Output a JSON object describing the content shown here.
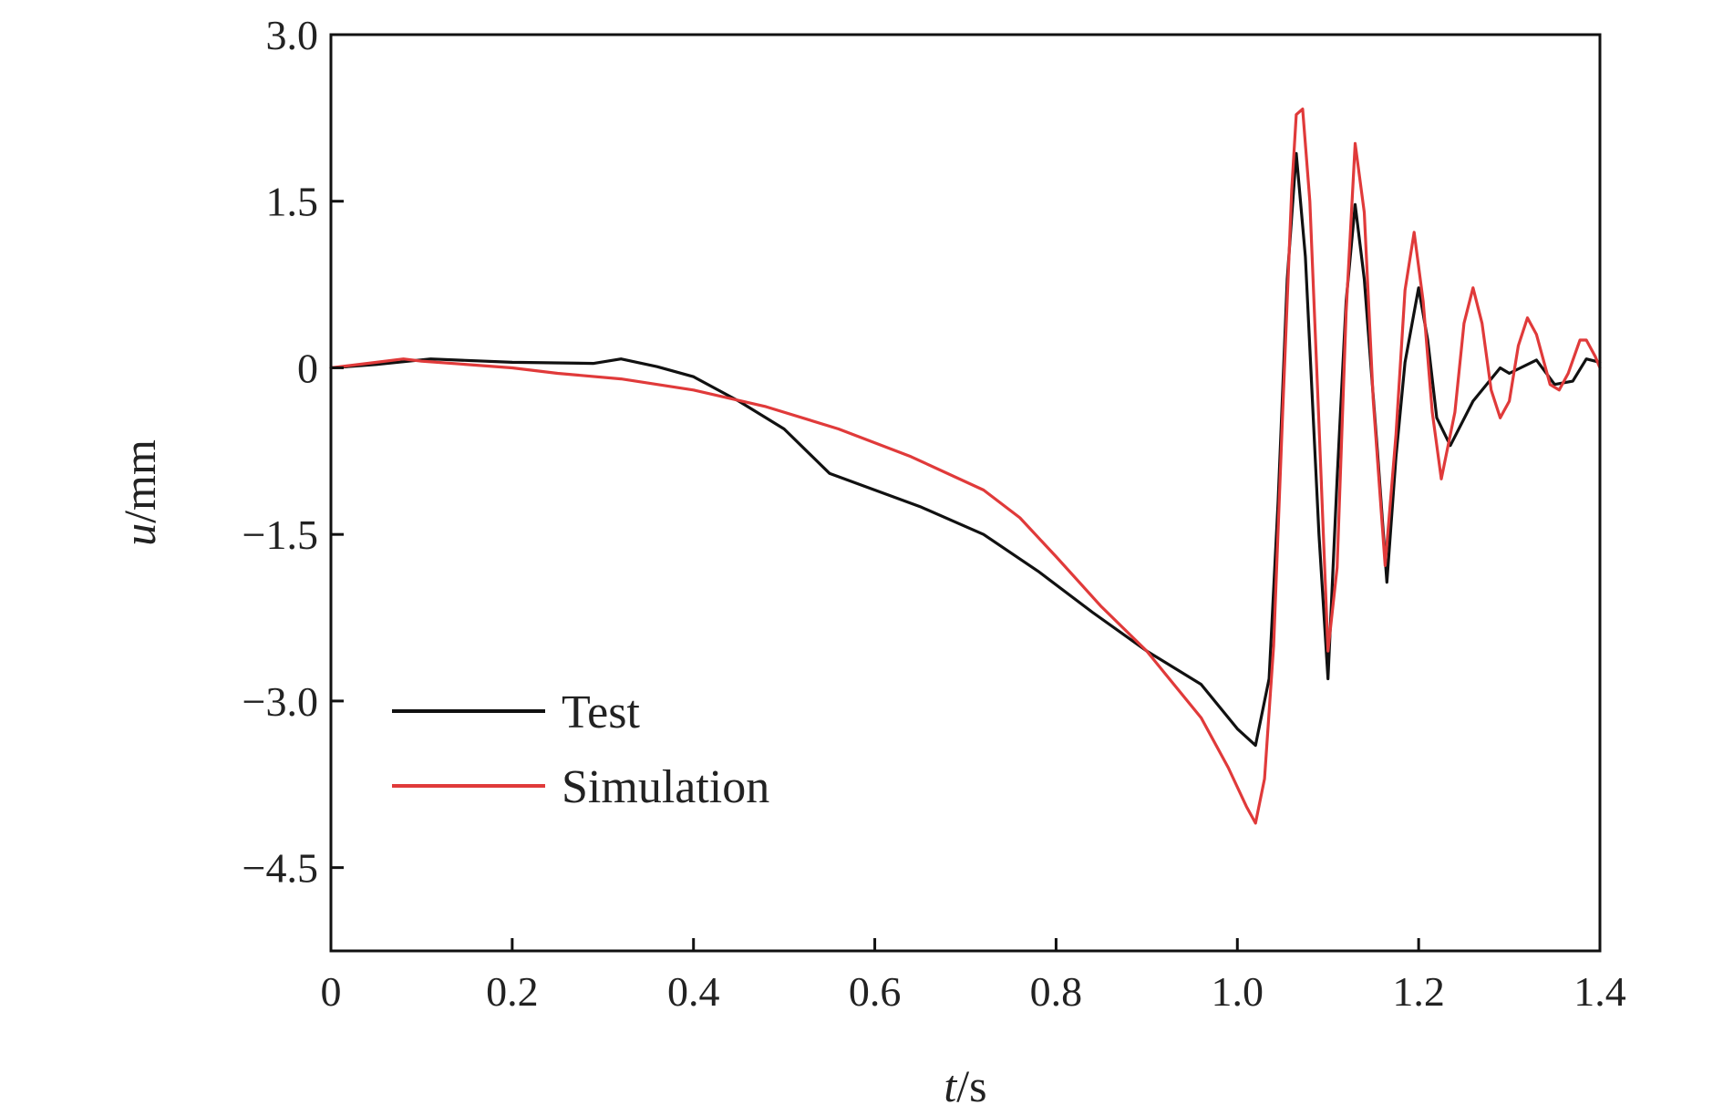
{
  "chart_data": {
    "type": "line",
    "title": "",
    "xlabel": {
      "var": "t",
      "unit": "/s"
    },
    "ylabel": {
      "var": "u",
      "unit": "/mm"
    },
    "xlim": [
      0,
      1.4
    ],
    "ylim": [
      -5.25,
      3.0
    ],
    "x_ticks": [
      0,
      0.2,
      0.4,
      0.6,
      0.8,
      1.0,
      1.2,
      1.4
    ],
    "x_tick_labels": [
      "0",
      "0.2",
      "0.4",
      "0.6",
      "0.8",
      "1.0",
      "1.2",
      "1.4"
    ],
    "y_ticks": [
      3.0,
      1.5,
      0,
      -1.5,
      -3.0,
      -4.5
    ],
    "y_tick_labels": [
      "3.0",
      "1.5",
      "0",
      "−1.5",
      "−3.0",
      "−4.5"
    ],
    "grid": false,
    "legend_position": "bottom-left",
    "series": [
      {
        "name": "Test",
        "color": "#111111",
        "points": [
          [
            0,
            0
          ],
          [
            0.05,
            0.03
          ],
          [
            0.11,
            0.08
          ],
          [
            0.2,
            0.05
          ],
          [
            0.29,
            0.04
          ],
          [
            0.32,
            0.08
          ],
          [
            0.36,
            0.01
          ],
          [
            0.4,
            -0.08
          ],
          [
            0.45,
            -0.3
          ],
          [
            0.5,
            -0.55
          ],
          [
            0.55,
            -0.95
          ],
          [
            0.6,
            -1.1
          ],
          [
            0.65,
            -1.25
          ],
          [
            0.72,
            -1.5
          ],
          [
            0.78,
            -1.83
          ],
          [
            0.84,
            -2.2
          ],
          [
            0.9,
            -2.55
          ],
          [
            0.96,
            -2.85
          ],
          [
            0.98,
            -3.05
          ],
          [
            1.0,
            -3.25
          ],
          [
            1.02,
            -3.4
          ],
          [
            1.035,
            -2.8
          ],
          [
            1.045,
            -1.2
          ],
          [
            1.055,
            0.8
          ],
          [
            1.065,
            1.93
          ],
          [
            1.075,
            1.0
          ],
          [
            1.09,
            -1.5
          ],
          [
            1.1,
            -2.8
          ],
          [
            1.11,
            -1.0
          ],
          [
            1.12,
            0.6
          ],
          [
            1.13,
            1.47
          ],
          [
            1.14,
            0.8
          ],
          [
            1.155,
            -0.8
          ],
          [
            1.165,
            -1.93
          ],
          [
            1.175,
            -0.8
          ],
          [
            1.185,
            0.05
          ],
          [
            1.2,
            0.72
          ],
          [
            1.21,
            0.25
          ],
          [
            1.22,
            -0.45
          ],
          [
            1.235,
            -0.7
          ],
          [
            1.26,
            -0.3
          ],
          [
            1.29,
            0.0
          ],
          [
            1.3,
            -0.05
          ],
          [
            1.33,
            0.07
          ],
          [
            1.35,
            -0.15
          ],
          [
            1.37,
            -0.12
          ],
          [
            1.385,
            0.08
          ],
          [
            1.4,
            0.05
          ]
        ]
      },
      {
        "name": "Simulation",
        "color": "#e03a3a",
        "points": [
          [
            0,
            0
          ],
          [
            0.04,
            0.04
          ],
          [
            0.08,
            0.08
          ],
          [
            0.1,
            0.06
          ],
          [
            0.2,
            0.0
          ],
          [
            0.25,
            -0.05
          ],
          [
            0.32,
            -0.1
          ],
          [
            0.4,
            -0.2
          ],
          [
            0.48,
            -0.35
          ],
          [
            0.56,
            -0.55
          ],
          [
            0.64,
            -0.8
          ],
          [
            0.72,
            -1.1
          ],
          [
            0.76,
            -1.35
          ],
          [
            0.8,
            -1.7
          ],
          [
            0.85,
            -2.15
          ],
          [
            0.9,
            -2.55
          ],
          [
            0.92,
            -2.75
          ],
          [
            0.96,
            -3.15
          ],
          [
            0.99,
            -3.6
          ],
          [
            1.01,
            -3.95
          ],
          [
            1.02,
            -4.1
          ],
          [
            1.03,
            -3.7
          ],
          [
            1.04,
            -2.5
          ],
          [
            1.05,
            -0.4
          ],
          [
            1.06,
            1.6
          ],
          [
            1.065,
            2.28
          ],
          [
            1.072,
            2.33
          ],
          [
            1.08,
            1.5
          ],
          [
            1.09,
            -0.5
          ],
          [
            1.1,
            -2.55
          ],
          [
            1.11,
            -1.8
          ],
          [
            1.12,
            0.5
          ],
          [
            1.13,
            2.02
          ],
          [
            1.14,
            1.4
          ],
          [
            1.15,
            -0.3
          ],
          [
            1.163,
            -1.78
          ],
          [
            1.175,
            -0.6
          ],
          [
            1.185,
            0.7
          ],
          [
            1.195,
            1.22
          ],
          [
            1.205,
            0.6
          ],
          [
            1.215,
            -0.4
          ],
          [
            1.225,
            -1.0
          ],
          [
            1.24,
            -0.4
          ],
          [
            1.25,
            0.4
          ],
          [
            1.26,
            0.72
          ],
          [
            1.27,
            0.4
          ],
          [
            1.28,
            -0.2
          ],
          [
            1.29,
            -0.45
          ],
          [
            1.3,
            -0.3
          ],
          [
            1.31,
            0.2
          ],
          [
            1.32,
            0.45
          ],
          [
            1.33,
            0.3
          ],
          [
            1.345,
            -0.15
          ],
          [
            1.355,
            -0.2
          ],
          [
            1.365,
            -0.05
          ],
          [
            1.378,
            0.25
          ],
          [
            1.385,
            0.25
          ],
          [
            1.395,
            0.1
          ],
          [
            1.4,
            0.0
          ]
        ]
      }
    ]
  }
}
